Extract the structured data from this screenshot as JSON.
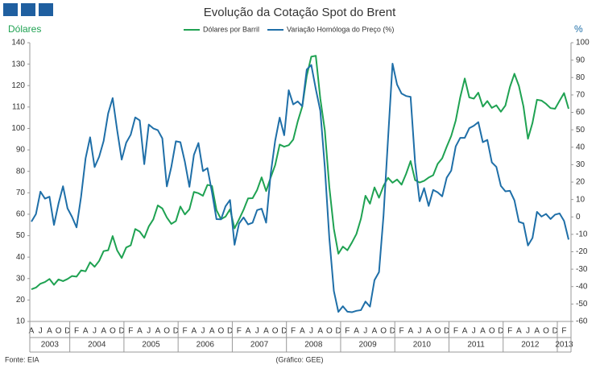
{
  "chart_data": {
    "type": "line",
    "title": "Evolução da Cotação Spot do Brent",
    "y_label": "Dólares",
    "y2_label": "%",
    "source": "Fonte: EIA",
    "credit": "(Gráfico: GEE)",
    "categories": [
      "A",
      null,
      "J",
      null,
      "A",
      null,
      "O",
      null,
      "D",
      null,
      "F",
      null,
      "A",
      null,
      "J",
      null,
      "A",
      null,
      "O",
      null,
      "D",
      null,
      "F",
      null,
      "A",
      null,
      "J",
      null,
      "A",
      null,
      "O",
      null,
      "D",
      null,
      "F",
      null,
      "A",
      null,
      "J",
      null,
      "A",
      null,
      "O",
      null,
      "D",
      null,
      "F",
      null,
      "A",
      null,
      "J",
      null,
      "A",
      null,
      "O",
      null,
      "D",
      null,
      "F",
      null,
      "A",
      null,
      "J",
      null,
      "A",
      null,
      "O",
      null,
      "D",
      null,
      "F",
      null,
      "A",
      null,
      "J",
      null,
      "A",
      null,
      "O",
      null,
      "D",
      null,
      "F",
      null,
      "A",
      null,
      "J",
      null,
      "A",
      null,
      "O",
      null,
      "D",
      null,
      "F",
      null,
      "A",
      null,
      "J",
      null,
      "A",
      null,
      "O",
      null,
      "D",
      null,
      "F",
      null,
      "A",
      null,
      "J",
      null,
      "A",
      null,
      "O",
      null,
      "D",
      null,
      "F",
      null
    ],
    "years": [
      "2003",
      "2004",
      "2005",
      "2006",
      "2007",
      "2008",
      "2009",
      "2010",
      "2011",
      "2012",
      "2013"
    ],
    "series": [
      {
        "name": "Dólares por Barril",
        "color": "#1fa252",
        "values": [
          25.0,
          25.8,
          27.6,
          28.4,
          29.8,
          27.1,
          29.6,
          28.8,
          29.8,
          31.2,
          30.9,
          33.8,
          33.4,
          37.6,
          35.5,
          38.2,
          42.8,
          43.2,
          49.8,
          43.1,
          39.6,
          44.5,
          45.5,
          53.1,
          51.9,
          49.0,
          54.3,
          57.6,
          64.1,
          62.7,
          58.5,
          55.5,
          56.8,
          63.6,
          59.9,
          62.3,
          70.4,
          69.8,
          68.6,
          73.7,
          73.2,
          61.9,
          57.7,
          58.9,
          62.3,
          53.4,
          57.6,
          62.1,
          67.4,
          67.5,
          71.3,
          77.2,
          70.8,
          77.1,
          82.9,
          92.5,
          91.5,
          92.2,
          94.8,
          103.3,
          110.2,
          124.6,
          133.5,
          133.9,
          113.9,
          99.1,
          72.7,
          53.2,
          41.6,
          44.9,
          43.2,
          46.8,
          50.8,
          57.9,
          68.6,
          64.9,
          72.5,
          67.7,
          73.2,
          77.0,
          74.7,
          76.2,
          73.8,
          78.8,
          84.8,
          75.9,
          74.8,
          75.6,
          77.1,
          78.2,
          83.5,
          86.1,
          91.5,
          96.5,
          103.7,
          114.6,
          123.3,
          114.5,
          113.9,
          116.7,
          110.2,
          112.8,
          109.6,
          110.8,
          107.8,
          110.7,
          119.3,
          125.5,
          119.8,
          110.3,
          95.2,
          102.6,
          113.4,
          113.0,
          111.5,
          109.5,
          109.2,
          112.9,
          116.5,
          109.2
        ]
      },
      {
        "name": "Variação Homóloga do Preço (%)",
        "color": "#1f6fa8",
        "axis": "y2",
        "values": [
          -2.7,
          1.6,
          14.5,
          10.5,
          11.6,
          -4.6,
          7.6,
          17.6,
          4.9,
          0,
          -6,
          11.6,
          33.6,
          45.7,
          28.6,
          34.5,
          43.6,
          59.4,
          68.2,
          49.7,
          32.9,
          42.6,
          47.2,
          57.1,
          55.4,
          30.3,
          53.0,
          50.8,
          49.8,
          45.1,
          17.5,
          28.8,
          43.4,
          42.9,
          31.6,
          17.3,
          35.6,
          42.4,
          26.3,
          28.0,
          14.2,
          -1.3,
          -1.4,
          6.1,
          9.7,
          -16.0,
          -3.8,
          -0.3,
          -4.3,
          -3.3,
          3.9,
          4.7,
          -3.3,
          24.6,
          43.7,
          57.0,
          46.9,
          72.7,
          64.6,
          66.3,
          63.5,
          84.6,
          87.2,
          73.4,
          60.9,
          28.5,
          -12.3,
          -42.5,
          -54.5,
          -51.3,
          -54.4,
          -54.7,
          -53.9,
          -53.5,
          -48.6,
          -51.5,
          -36.3,
          -31.7,
          0.7,
          44.7,
          88.0,
          76.0,
          70.8,
          69.4,
          68.9,
          31.1,
          9.0,
          16.5,
          6.3,
          15.5,
          14.1,
          11.8,
          22.5,
          26.6,
          40.5,
          45.4,
          45.4,
          50.9,
          52.3,
          54.4,
          42.9,
          44.2,
          31.3,
          28.7,
          17.8,
          14.7,
          15.0,
          9.5,
          -2.8,
          -3.7,
          -16.4,
          -12.1,
          2.9,
          0.2,
          1.7,
          -1.2,
          1.3,
          2.0,
          -2.3,
          -13.0
        ]
      }
    ],
    "ylim": [
      10,
      140
    ],
    "yticks": [
      10,
      20,
      30,
      40,
      50,
      60,
      70,
      80,
      90,
      100,
      110,
      120,
      130,
      140
    ],
    "y2lim": [
      -60,
      100
    ],
    "y2ticks": [
      -60,
      -50,
      -40,
      -30,
      -20,
      -10,
      0,
      10,
      20,
      30,
      40,
      50,
      60,
      70,
      80,
      90,
      100
    ],
    "legend": "top"
  }
}
